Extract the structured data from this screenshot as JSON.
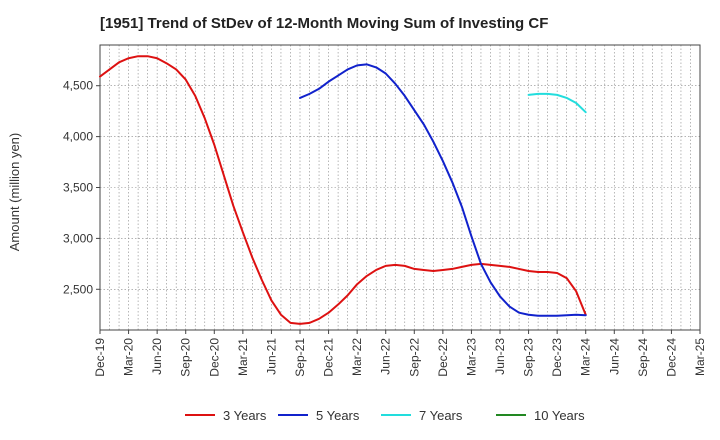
{
  "chart_data": {
    "type": "line",
    "title": "[1951]  Trend of StDev of 12-Month Moving Sum of Investing CF",
    "xlabel": "",
    "ylabel": "Amount (million yen)",
    "ylim": [
      2100,
      4900
    ],
    "yticks": [
      2500,
      3000,
      3500,
      4000,
      4500
    ],
    "ytick_labels": [
      "2,500",
      "3,000",
      "3,500",
      "4,000",
      "4,500"
    ],
    "x_tick_labels": [
      "Dec-19",
      "Mar-20",
      "Jun-20",
      "Sep-20",
      "Dec-20",
      "Mar-21",
      "Jun-21",
      "Sep-21",
      "Dec-21",
      "Mar-22",
      "Jun-22",
      "Sep-22",
      "Dec-22",
      "Mar-23",
      "Jun-23",
      "Sep-23",
      "Dec-23",
      "Mar-24",
      "Jun-24",
      "Sep-24",
      "Dec-24",
      "Mar-25"
    ],
    "grid": true,
    "legend_position": "bottom",
    "series": [
      {
        "name": "3 Years",
        "color": "#dd1111",
        "x": [
          "Dec-19",
          "Jan-20",
          "Feb-20",
          "Mar-20",
          "Apr-20",
          "May-20",
          "Jun-20",
          "Jul-20",
          "Aug-20",
          "Sep-20",
          "Oct-20",
          "Nov-20",
          "Dec-20",
          "Jan-21",
          "Feb-21",
          "Mar-21",
          "Apr-21",
          "May-21",
          "Jun-21",
          "Jul-21",
          "Aug-21",
          "Sep-21",
          "Oct-21",
          "Nov-21",
          "Dec-21",
          "Jan-22",
          "Feb-22",
          "Mar-22",
          "Apr-22",
          "May-22",
          "Jun-22",
          "Jul-22",
          "Aug-22",
          "Sep-22",
          "Oct-22",
          "Nov-22",
          "Dec-22",
          "Jan-23",
          "Feb-23",
          "Mar-23",
          "Apr-23",
          "May-23",
          "Jun-23",
          "Jul-23",
          "Aug-23",
          "Sep-23",
          "Oct-23",
          "Nov-23",
          "Dec-23",
          "Jan-24",
          "Feb-24",
          "Mar-24"
        ],
        "values": [
          4590,
          4660,
          4730,
          4770,
          4790,
          4790,
          4770,
          4720,
          4660,
          4560,
          4400,
          4180,
          3920,
          3620,
          3320,
          3060,
          2810,
          2590,
          2390,
          2250,
          2170,
          2160,
          2170,
          2210,
          2270,
          2350,
          2440,
          2550,
          2630,
          2690,
          2730,
          2740,
          2730,
          2700,
          2690,
          2680,
          2690,
          2700,
          2720,
          2740,
          2750,
          2740,
          2730,
          2720,
          2700,
          2680,
          2670,
          2670,
          2660,
          2610,
          2480,
          2250
        ]
      },
      {
        "name": "5 Years",
        "color": "#1122cc",
        "x": [
          "Sep-21",
          "Oct-21",
          "Nov-21",
          "Dec-21",
          "Jan-22",
          "Feb-22",
          "Mar-22",
          "Apr-22",
          "May-22",
          "Jun-22",
          "Jul-22",
          "Aug-22",
          "Sep-22",
          "Oct-22",
          "Nov-22",
          "Dec-22",
          "Jan-23",
          "Feb-23",
          "Mar-23",
          "Apr-23",
          "May-23",
          "Jun-23",
          "Jul-23",
          "Aug-23",
          "Sep-23",
          "Oct-23",
          "Nov-23",
          "Dec-23",
          "Jan-24",
          "Feb-24",
          "Mar-24"
        ],
        "values": [
          4380,
          4420,
          4470,
          4540,
          4600,
          4660,
          4700,
          4710,
          4680,
          4620,
          4520,
          4400,
          4260,
          4120,
          3950,
          3760,
          3550,
          3310,
          3020,
          2750,
          2570,
          2430,
          2330,
          2270,
          2250,
          2240,
          2240,
          2240,
          2245,
          2250,
          2245
        ]
      },
      {
        "name": "7 Years",
        "color": "#22dddd",
        "x": [
          "Sep-23",
          "Oct-23",
          "Nov-23",
          "Dec-23",
          "Jan-24",
          "Feb-24",
          "Mar-24"
        ],
        "values": [
          4410,
          4420,
          4420,
          4410,
          4380,
          4330,
          4240
        ]
      },
      {
        "name": "10 Years",
        "color": "#228822",
        "x": [],
        "values": []
      }
    ]
  }
}
